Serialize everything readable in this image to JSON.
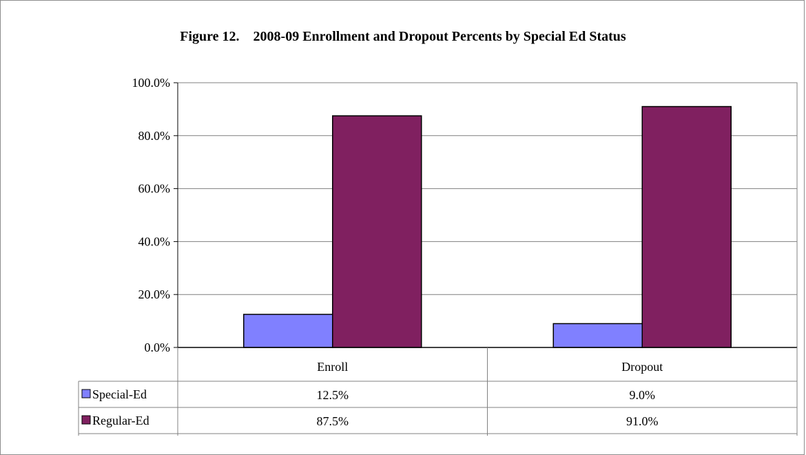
{
  "chart_data": {
    "type": "bar",
    "title": "Figure 12.    2008-09 Enrollment and Dropout Percents by Special Ed Status",
    "categories": [
      "Enroll",
      "Dropout"
    ],
    "series": [
      {
        "name": "Special-Ed",
        "values": [
          12.5,
          9.0
        ],
        "color": "#8080ff",
        "labels": [
          "12.5%",
          "9.0%"
        ]
      },
      {
        "name": "Regular-Ed",
        "values": [
          87.5,
          91.0
        ],
        "color": "#802060",
        "labels": [
          "87.5%",
          "91.0%"
        ]
      }
    ],
    "ylim": [
      0,
      100
    ],
    "yticks": [
      "0.0%",
      "20.0%",
      "40.0%",
      "60.0%",
      "80.0%",
      "100.0%"
    ],
    "grid": true,
    "legend": "data-table"
  }
}
